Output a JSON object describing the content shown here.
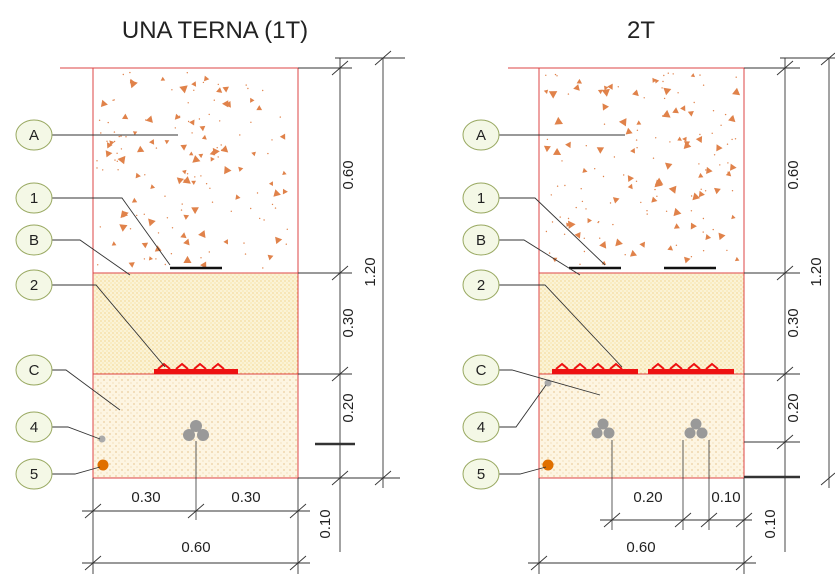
{
  "diagram_1t": {
    "title": "UNA TERNA (1T)",
    "bubbles": [
      "A",
      "1",
      "B",
      "2",
      "C",
      "4",
      "5"
    ],
    "dims": {
      "d060v": "0.60",
      "d030v": "0.30",
      "d020v": "0.20",
      "d010v": "0.10",
      "d120v": "1.20",
      "w030a": "0.30",
      "w030b": "0.30",
      "w060": "0.60"
    }
  },
  "diagram_2t": {
    "title": "2T",
    "bubbles": [
      "A",
      "1",
      "B",
      "2",
      "C",
      "4",
      "5"
    ],
    "dims": {
      "d060v": "0.60",
      "d030v": "0.30",
      "d020v": "0.20",
      "d010v": "0.10",
      "d120v": "1.20",
      "w020": "0.20",
      "w010": "0.10",
      "w060": "0.60"
    }
  },
  "colors": {
    "concrete_triangles": "#e0824a",
    "sand_fill": "#fbf3d6",
    "sand_dots": "#e8b23a",
    "soil_fill": "#fdf5e2",
    "boundary": "#dd4444",
    "warning_tape": "#ee1111",
    "cable": "#999999",
    "ground_wire": "#e07000",
    "bubble_stroke": "#98a860",
    "bubble_fill": "#f4f8e6"
  },
  "icons": [
    "concrete-hatch",
    "sand-hatch",
    "cable-trefoil-icon",
    "warning-tape-icon",
    "ground-conductor-icon"
  ]
}
